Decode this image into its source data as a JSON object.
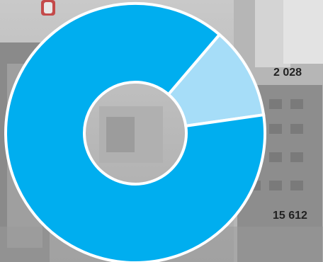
{
  "chart_data": {
    "type": "pie",
    "donut": true,
    "slices": [
      {
        "label": "2 028",
        "value": 2028,
        "color": "#a6ddf8"
      },
      {
        "label": "15 612",
        "value": 15612,
        "color": "#00aeef"
      }
    ],
    "separator_color": "#ffffff",
    "title": "",
    "legend": "none"
  },
  "background": {
    "description_colors": [
      "#9a9a9a",
      "#c4c4c4",
      "#6f6f6f",
      "#d8d8d8"
    ]
  }
}
